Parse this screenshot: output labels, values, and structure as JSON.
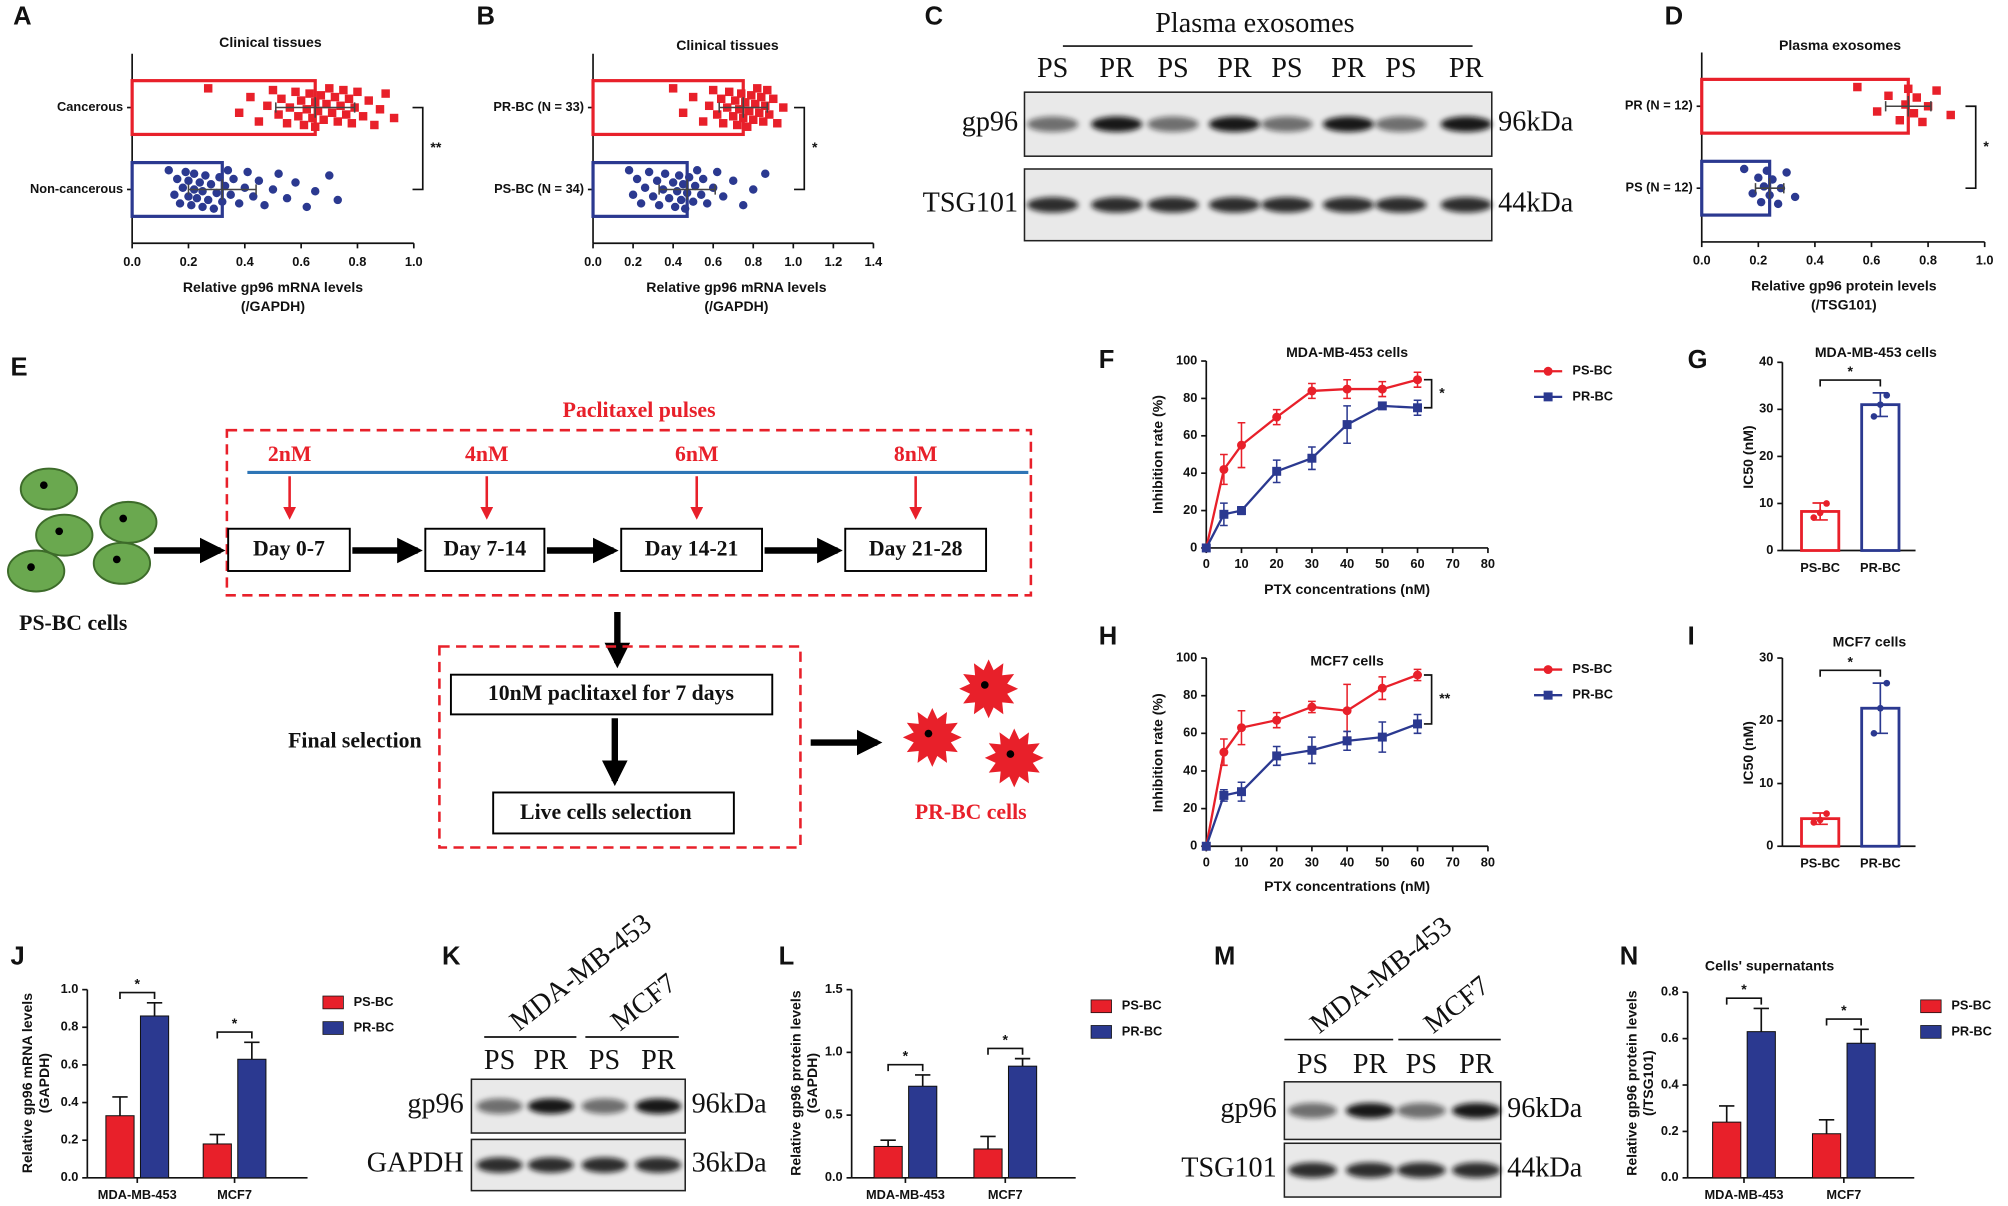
{
  "chart_data": [
    {
      "panel": "A",
      "type": "bar",
      "horizontal": true,
      "title": "Clinical tissues",
      "categories": [
        "Cancerous",
        "Non-cancerous"
      ],
      "values": [
        0.65,
        0.32
      ],
      "errors": [
        0.14,
        0.12
      ],
      "points": [
        [
          0.27,
          0.38,
          0.42,
          0.45,
          0.48,
          0.5,
          0.52,
          0.53,
          0.55,
          0.56,
          0.58,
          0.59,
          0.6,
          0.61,
          0.62,
          0.63,
          0.64,
          0.65,
          0.65,
          0.66,
          0.67,
          0.68,
          0.69,
          0.7,
          0.71,
          0.72,
          0.73,
          0.74,
          0.75,
          0.76,
          0.77,
          0.78,
          0.79,
          0.8,
          0.82,
          0.84,
          0.86,
          0.88,
          0.9,
          0.93
        ],
        [
          0.13,
          0.15,
          0.16,
          0.17,
          0.18,
          0.19,
          0.2,
          0.2,
          0.21,
          0.22,
          0.22,
          0.23,
          0.24,
          0.25,
          0.25,
          0.26,
          0.27,
          0.28,
          0.29,
          0.3,
          0.31,
          0.32,
          0.33,
          0.34,
          0.35,
          0.36,
          0.38,
          0.4,
          0.41,
          0.43,
          0.45,
          0.47,
          0.5,
          0.52,
          0.55,
          0.58,
          0.62,
          0.65,
          0.7,
          0.73
        ]
      ],
      "colors": [
        "#e8202a",
        "#2b3990"
      ],
      "markers": [
        "square",
        "circle"
      ],
      "xlim": [
        0,
        1
      ],
      "xticks": [
        {
          "value": 0,
          "label": "0.0"
        },
        0.2,
        0.4,
        0.6,
        0.8,
        {
          "value": 1,
          "label": "1.0"
        }
      ],
      "xlabel": [
        "Relative gp96 mRNA levels",
        "(/GAPDH)"
      ],
      "significance": "**"
    },
    {
      "panel": "B",
      "type": "bar",
      "horizontal": true,
      "title": "Clinical tissues",
      "categories": [
        "PR-BC (N = 33)",
        "PS-BC (N = 34)"
      ],
      "values": [
        0.75,
        0.47
      ],
      "errors": [
        0.12,
        0.14
      ],
      "points": [
        [
          0.4,
          0.45,
          0.5,
          0.55,
          0.58,
          0.6,
          0.62,
          0.64,
          0.65,
          0.67,
          0.68,
          0.7,
          0.71,
          0.72,
          0.73,
          0.74,
          0.75,
          0.76,
          0.77,
          0.78,
          0.79,
          0.8,
          0.81,
          0.82,
          0.83,
          0.84,
          0.85,
          0.86,
          0.87,
          0.88,
          0.9,
          0.92,
          0.95
        ],
        [
          0.18,
          0.2,
          0.22,
          0.24,
          0.26,
          0.28,
          0.3,
          0.32,
          0.33,
          0.35,
          0.36,
          0.38,
          0.4,
          0.41,
          0.42,
          0.43,
          0.44,
          0.45,
          0.46,
          0.47,
          0.48,
          0.5,
          0.51,
          0.52,
          0.54,
          0.55,
          0.57,
          0.6,
          0.62,
          0.65,
          0.7,
          0.75,
          0.8,
          0.86
        ]
      ],
      "colors": [
        "#e8202a",
        "#2b3990"
      ],
      "markers": [
        "square",
        "circle"
      ],
      "xlim": [
        0,
        1.4
      ],
      "xticks": [
        {
          "value": 0,
          "label": "0.0"
        },
        0.2,
        0.4,
        0.6,
        0.8,
        {
          "value": 1,
          "label": "1.0"
        },
        1.2,
        1.4
      ],
      "xlabel": [
        "Relative gp96 mRNA levels",
        "(/GAPDH)"
      ],
      "significance": "*"
    },
    {
      "panel": "D",
      "type": "bar",
      "horizontal": true,
      "title": "Plasma exosomes",
      "categories": [
        "PR (N = 12)",
        "PS (N = 12)"
      ],
      "values": [
        0.73,
        0.24
      ],
      "errors": [
        0.08,
        0.05
      ],
      "points": [
        [
          0.55,
          0.62,
          0.66,
          0.7,
          0.72,
          0.73,
          0.75,
          0.76,
          0.78,
          0.8,
          0.83,
          0.88
        ],
        [
          0.15,
          0.18,
          0.2,
          0.21,
          0.22,
          0.23,
          0.24,
          0.25,
          0.27,
          0.28,
          0.3,
          0.33
        ]
      ],
      "colors": [
        "#e8202a",
        "#2b3990"
      ],
      "markers": [
        "square",
        "circle"
      ],
      "xlim": [
        0,
        1
      ],
      "xticks": [
        {
          "value": 0,
          "label": "0.0"
        },
        0.2,
        0.4,
        0.6,
        0.8,
        {
          "value": 1,
          "label": "1.0"
        }
      ],
      "xlabel": [
        "Relative gp96 protein levels",
        "(/TSG101)"
      ],
      "significance": "*"
    },
    {
      "panel": "F",
      "type": "line",
      "title": "MDA-MB-453 cells",
      "x": [
        0,
        5,
        10,
        20,
        30,
        40,
        50,
        60
      ],
      "series": [
        {
          "name": "PS-BC",
          "color": "#e8202a",
          "marker": "circle",
          "values": [
            0,
            42,
            55,
            70,
            84,
            85,
            85,
            90
          ],
          "errors": [
            0,
            8,
            12,
            4,
            4,
            5,
            4,
            4
          ]
        },
        {
          "name": "PR-BC",
          "color": "#2b3990",
          "marker": "square",
          "values": [
            0,
            18,
            20,
            41,
            48,
            66,
            76,
            75
          ],
          "errors": [
            0,
            6,
            2,
            6,
            6,
            10,
            1,
            4
          ]
        }
      ],
      "xlim": [
        0,
        80
      ],
      "xticks": [
        0,
        10,
        20,
        30,
        40,
        50,
        60,
        70,
        80
      ],
      "ylim": [
        0,
        100
      ],
      "yticks": [
        0,
        20,
        40,
        60,
        80,
        100
      ],
      "xlabel": [
        "PTX concentrations (nM)"
      ],
      "ylabel": [
        "Inhibition rate (%)"
      ],
      "significance": "*"
    },
    {
      "panel": "G",
      "type": "bar",
      "title": "MDA-MB-453 cells",
      "categories": [
        "PS-BC",
        "PR-BC"
      ],
      "values": [
        8.3,
        31
      ],
      "errors": [
        1.8,
        2.5
      ],
      "points": [
        [
          7,
          8,
          10
        ],
        [
          28.5,
          31,
          33
        ]
      ],
      "colors": [
        "#e8202a",
        "#2b3990"
      ],
      "ylim": [
        0,
        40
      ],
      "yticks": [
        0,
        10,
        20,
        30,
        40
      ],
      "ylabel": [
        "IC50 (nM)"
      ],
      "significance": "*"
    },
    {
      "panel": "H",
      "type": "line",
      "title": "MCF7 cells",
      "x": [
        0,
        5,
        10,
        20,
        30,
        40,
        50,
        60
      ],
      "series": [
        {
          "name": "PS-BC",
          "color": "#e8202a",
          "marker": "circle",
          "values": [
            0,
            50,
            63,
            67,
            74,
            72,
            84,
            91
          ],
          "errors": [
            0,
            7,
            9,
            4,
            3,
            14,
            6,
            3
          ]
        },
        {
          "name": "PR-BC",
          "color": "#2b3990",
          "marker": "square",
          "values": [
            0,
            27,
            29,
            48,
            51,
            56,
            58,
            65
          ],
          "errors": [
            0,
            3,
            5,
            5,
            7,
            5,
            8,
            5
          ]
        }
      ],
      "xlim": [
        0,
        80
      ],
      "xticks": [
        0,
        10,
        20,
        30,
        40,
        50,
        60,
        70,
        80
      ],
      "ylim": [
        0,
        100
      ],
      "yticks": [
        0,
        20,
        40,
        60,
        80,
        100
      ],
      "xlabel": [
        "PTX concentrations (nM)"
      ],
      "ylabel": [
        "Inhibition rate (%)"
      ],
      "significance": "**"
    },
    {
      "panel": "I",
      "type": "bar",
      "title": "MCF7 cells",
      "categories": [
        "PS-BC",
        "PR-BC"
      ],
      "values": [
        4.4,
        22
      ],
      "errors": [
        0.9,
        4
      ],
      "points": [
        [
          3.8,
          4.2,
          5.2
        ],
        [
          18,
          22,
          26
        ]
      ],
      "colors": [
        "#e8202a",
        "#2b3990"
      ],
      "ylim": [
        0,
        30
      ],
      "yticks": [
        0,
        10,
        20,
        30
      ],
      "ylabel": [
        "IC50 (nM)"
      ],
      "significance": "*"
    },
    {
      "panel": "J",
      "type": "bar",
      "categories": [
        "MDA-MB-453",
        "MCF7"
      ],
      "series": [
        {
          "name": "PS-BC",
          "color": "#e8202a",
          "values": [
            0.33,
            0.18
          ],
          "errors": [
            0.1,
            0.05
          ]
        },
        {
          "name": "PR-BC",
          "color": "#2b3990",
          "values": [
            0.86,
            0.63
          ],
          "errors": [
            0.07,
            0.09
          ]
        }
      ],
      "ylim": [
        0,
        1
      ],
      "yticks": [
        {
          "value": 0,
          "label": "0.0"
        },
        0.2,
        0.4,
        0.6,
        0.8,
        {
          "value": 1,
          "label": "1.0"
        }
      ],
      "ylabel": [
        "Relative gp96 mRNA levels",
        "(GAPDH)"
      ],
      "significance": [
        "*",
        "*"
      ]
    },
    {
      "panel": "L",
      "type": "bar",
      "categories": [
        "MDA-MB-453",
        "MCF7"
      ],
      "series": [
        {
          "name": "PS-BC",
          "color": "#e8202a",
          "values": [
            0.25,
            0.23
          ],
          "errors": [
            0.05,
            0.1
          ]
        },
        {
          "name": "PR-BC",
          "color": "#2b3990",
          "values": [
            0.73,
            0.89
          ],
          "errors": [
            0.09,
            0.06
          ]
        }
      ],
      "ylim": [
        0,
        1.5
      ],
      "yticks": [
        {
          "value": 0,
          "label": "0.0"
        },
        0.5,
        {
          "value": 1,
          "label": "1.0"
        },
        1.5
      ],
      "ylabel": [
        "Relative gp96 protein levels",
        "(GAPDH)"
      ],
      "significance": [
        "*",
        "*"
      ]
    },
    {
      "panel": "N",
      "type": "bar",
      "title": "Cells' supernatants",
      "categories": [
        "MDA-MB-453",
        "MCF7"
      ],
      "series": [
        {
          "name": "PS-BC",
          "color": "#e8202a",
          "values": [
            0.24,
            0.19
          ],
          "errors": [
            0.07,
            0.06
          ]
        },
        {
          "name": "PR-BC",
          "color": "#2b3990",
          "values": [
            0.63,
            0.58
          ],
          "errors": [
            0.1,
            0.06
          ]
        }
      ],
      "ylim": [
        0,
        0.8
      ],
      "yticks": [
        {
          "value": 0,
          "label": "0.0"
        },
        0.2,
        0.4,
        0.6,
        0.8
      ],
      "ylabel": [
        "Relative gp96 protein levels",
        "(/TSG101)"
      ],
      "significance": [
        "*",
        "*"
      ]
    }
  ],
  "blots": [
    {
      "panel": "C",
      "title": "Plasma exosomes",
      "lanes": [
        "PS",
        "PR",
        "PS",
        "PR",
        "PS",
        "PR",
        "PS",
        "PR"
      ],
      "rows": [
        {
          "name": "gp96",
          "size": "96kDa"
        },
        {
          "name": "TSG101",
          "size": "44kDa"
        }
      ]
    },
    {
      "panel": "K",
      "groups": [
        "MDA-MB-453",
        "MCF7"
      ],
      "lanes": [
        "PS",
        "PR",
        "PS",
        "PR"
      ],
      "rows": [
        {
          "name": "gp96",
          "size": "96kDa"
        },
        {
          "name": "GAPDH",
          "size": "36kDa"
        }
      ]
    },
    {
      "panel": "M",
      "groups": [
        "MDA-MB-453",
        "MCF7"
      ],
      "lanes": [
        "PS",
        "PR",
        "PS",
        "PR"
      ],
      "rows": [
        {
          "name": "gp96",
          "size": "96kDa"
        },
        {
          "name": "TSG101",
          "size": "44kDa"
        }
      ]
    }
  ],
  "diagram": {
    "panel": "E",
    "title": "Paclitaxel pulses",
    "doses": [
      "2nM",
      "4nM",
      "6nM",
      "8nM"
    ],
    "periods": [
      "Day 0-7",
      "Day 7-14",
      "Day 14-21",
      "Day 21-28"
    ],
    "start": "PS-BC cells",
    "steps": [
      "10nM paclitaxel for 7 days",
      "Live cells selection"
    ],
    "stage": "Final selection",
    "end": "PR-BC cells"
  }
}
